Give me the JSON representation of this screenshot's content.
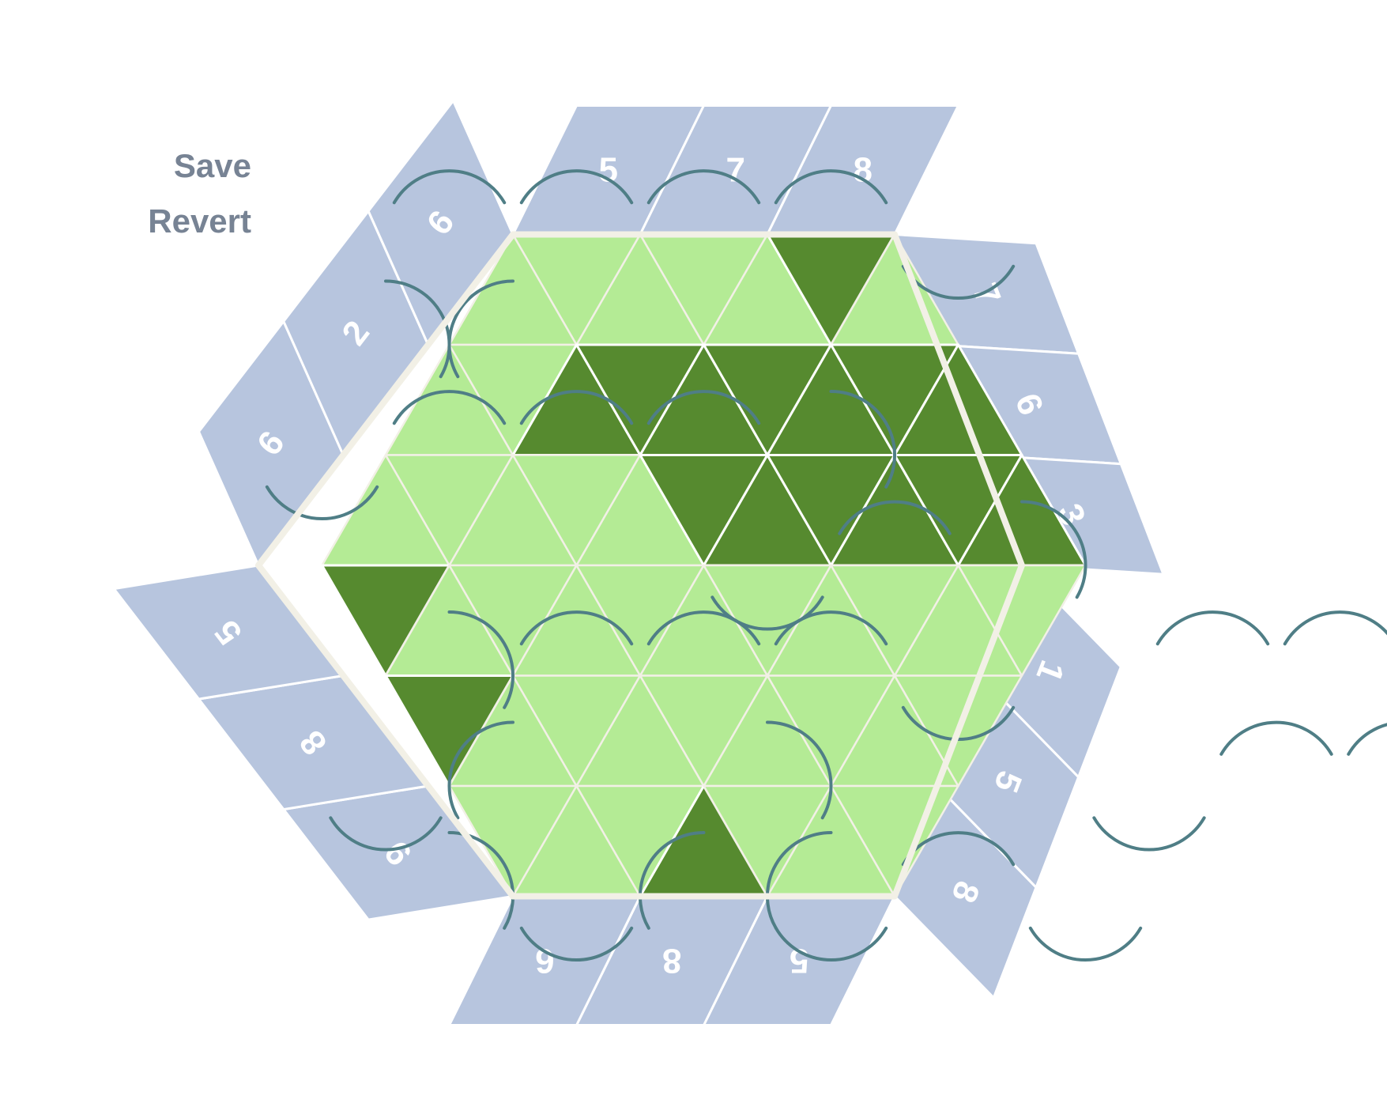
{
  "menu": {
    "save": "Save",
    "revert": "Revert"
  },
  "colors": {
    "light_cell": "#b4eb95",
    "dark_cell": "#568a2f",
    "clue_bg": "#b7c5de",
    "path": "#4f7e86",
    "grid_line": "#f2f0e6",
    "menu_text": "#778394"
  },
  "board": {
    "size": 3,
    "dark_cells": [
      [
        0,
        5
      ],
      [
        1,
        2
      ],
      [
        1,
        3
      ],
      [
        1,
        4
      ],
      [
        1,
        5
      ],
      [
        1,
        6
      ],
      [
        1,
        7
      ],
      [
        1,
        8
      ],
      [
        2,
        5
      ],
      [
        2,
        6
      ],
      [
        2,
        7
      ],
      [
        2,
        8
      ],
      [
        2,
        9
      ],
      [
        2,
        10
      ],
      [
        3,
        0
      ],
      [
        3,
        11
      ],
      [
        4,
        0
      ],
      [
        4,
        11
      ],
      [
        5,
        3
      ],
      [
        6,
        6
      ],
      [
        6,
        7
      ]
    ],
    "path_arcs": [
      [
        0,
        0,
        0
      ],
      [
        0,
        1,
        0
      ],
      [
        0,
        2,
        0
      ],
      [
        0,
        3,
        0
      ],
      [
        0,
        4,
        1
      ],
      [
        1,
        0,
        2
      ],
      [
        1,
        1,
        3
      ],
      [
        2,
        0,
        1
      ],
      [
        2,
        1,
        0
      ],
      [
        2,
        2,
        0
      ],
      [
        2,
        3,
        0
      ],
      [
        2,
        4,
        2
      ],
      [
        3,
        4,
        1
      ],
      [
        3,
        5,
        0
      ],
      [
        3,
        6,
        2
      ],
      [
        4,
        1,
        2
      ],
      [
        4,
        2,
        0
      ],
      [
        4,
        3,
        0
      ],
      [
        4,
        4,
        0
      ],
      [
        4,
        5,
        1
      ],
      [
        4,
        7,
        0
      ],
      [
        4,
        8,
        0
      ],
      [
        4,
        9,
        2
      ],
      [
        5,
        0,
        1
      ],
      [
        5,
        1,
        3
      ],
      [
        5,
        3,
        2
      ],
      [
        5,
        6,
        1
      ],
      [
        5,
        7,
        0
      ],
      [
        5,
        8,
        0
      ],
      [
        5,
        9,
        1
      ],
      [
        6,
        0,
        2
      ],
      [
        6,
        1,
        1
      ],
      [
        6,
        3,
        1
      ],
      [
        6,
        4,
        0
      ],
      [
        6,
        5,
        1
      ],
      [
        6,
        2,
        3
      ],
      [
        6,
        3,
        3
      ]
    ]
  },
  "clues": {
    "top": [
      "5",
      "7",
      "8"
    ],
    "top_right": [
      "7",
      "6",
      "3"
    ],
    "bottom_right": [
      "1",
      "5",
      "8"
    ],
    "bottom": [
      "5",
      "8",
      "6"
    ],
    "left_lower": [
      "9",
      "8",
      "5"
    ],
    "left_upper": [
      "6",
      "2",
      "6"
    ]
  }
}
